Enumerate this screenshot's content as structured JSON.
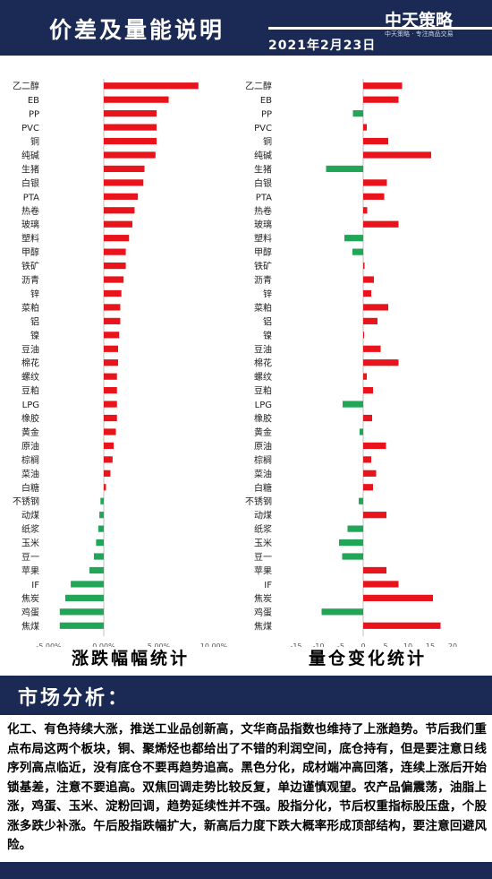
{
  "header": {
    "title": "价差及量能说明",
    "date": "2021年2月23日",
    "logo": "中天策略",
    "logo_sub": "中天策略 · 专注商品交易"
  },
  "colors": {
    "positive": "#e8131b",
    "negative": "#21a556",
    "header_bg": "#1b2a54"
  },
  "chart_data": [
    {
      "type": "bar",
      "orientation": "horizontal",
      "title": "涨跌幅幅统计",
      "categories": [
        "乙二醇",
        "EB",
        "PP",
        "PVC",
        "铜",
        "纯碱",
        "生猪",
        "白银",
        "PTA",
        "热卷",
        "玻璃",
        "塑料",
        "甲醇",
        "铁矿",
        "沥青",
        "锌",
        "菜粕",
        "铝",
        "镍",
        "豆油",
        "棉花",
        "螺纹",
        "豆粕",
        "LPG",
        "橡胶",
        "黄金",
        "原油",
        "棕榈",
        "菜油",
        "白糖",
        "不锈钢",
        "动煤",
        "纸浆",
        "玉米",
        "豆一",
        "苹果",
        "IF",
        "焦炭",
        "鸡蛋",
        "焦煤"
      ],
      "values": [
        8.6,
        5.9,
        4.8,
        4.8,
        4.8,
        4.7,
        3.7,
        3.6,
        3.1,
        2.8,
        2.6,
        2.3,
        2.0,
        2.0,
        1.8,
        1.6,
        1.5,
        1.5,
        1.4,
        1.3,
        1.3,
        1.2,
        1.2,
        1.2,
        1.2,
        1.1,
        0.9,
        0.8,
        0.6,
        0.2,
        -0.3,
        -0.4,
        -0.5,
        -0.7,
        -0.9,
        -1.3,
        -3.0,
        -3.5,
        -4.0,
        -4.0
      ],
      "xticks": [
        "-5.00%",
        "0.00%",
        "5.00%",
        "10.00%"
      ],
      "xlim": [
        -5.5,
        11
      ]
    },
    {
      "type": "bar",
      "orientation": "horizontal",
      "title": "量仓变化统计",
      "categories": [
        "乙二醇",
        "EB",
        "PP",
        "PVC",
        "铜",
        "纯碱",
        "生猪",
        "白银",
        "PTA",
        "热卷",
        "玻璃",
        "塑料",
        "甲醇",
        "铁矿",
        "沥青",
        "锌",
        "菜粕",
        "铝",
        "镍",
        "豆油",
        "棉花",
        "螺纹",
        "豆粕",
        "LPG",
        "橡胶",
        "黄金",
        "原油",
        "棕榈",
        "菜油",
        "白糖",
        "不锈钢",
        "动煤",
        "纸浆",
        "玉米",
        "豆一",
        "苹果",
        "IF",
        "焦炭",
        "鸡蛋",
        "焦煤"
      ],
      "values": [
        8.7,
        7.9,
        -2.3,
        0.8,
        5.6,
        15.2,
        -8.3,
        5.3,
        4.7,
        0.9,
        7.9,
        -4.2,
        -2.4,
        0.3,
        2.4,
        1.8,
        5.6,
        3.2,
        0.2,
        3.9,
        7.9,
        0.8,
        2.2,
        -4.6,
        2.0,
        -0.8,
        5.1,
        1.8,
        2.9,
        2.2,
        -1.0,
        5.2,
        -3.5,
        -5.4,
        -4.7,
        5.2,
        7.9,
        15.6,
        -9.3,
        17.3
      ],
      "xticks": [
        "-15",
        "-10",
        "-5",
        "0",
        "5",
        "10",
        "15",
        "20"
      ],
      "xlim": [
        -16,
        21
      ]
    }
  ],
  "analysis": {
    "title": "市场分析：",
    "text": "化工、有色持续大涨，推送工业品创新高，文华商品指数也维持了上涨趋势。节后我们重点布局这两个板块，铜、聚烯烃也都给出了不错的利润空间，底仓持有，但是要注意日线序列高点临近，没有底仓不要再趋势追高。黑色分化，成材端冲高回落，连续上涨后开始锁基差，注意不要追高。双焦回调走势比较反复，单边谨慎观望。农产品偏震荡，油脂上涨，鸡蛋、玉米、淀粉回调，趋势延续性并不强。股指分化，节后权重指标股压盘，个股涨多跌少补涨。午后股指跌幅扩大，新高后力度下跌大概率形成顶部结构，要注意回避风险。"
  }
}
